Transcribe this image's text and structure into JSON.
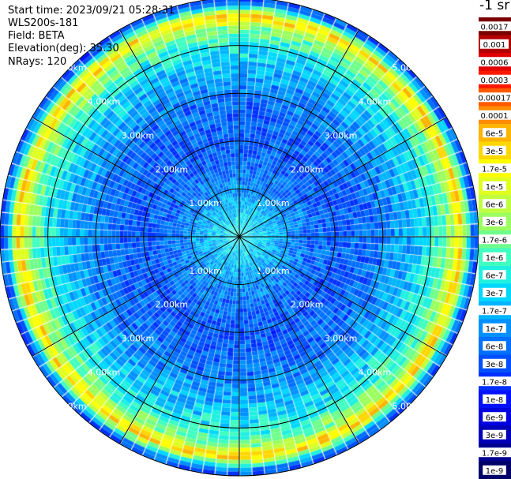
{
  "header": {
    "start_time": "Start time: 2023/09/21 05:28:31",
    "device": "WLS200s-181",
    "field": "Field: BETA",
    "elevation": "Elevation(deg): 35.30",
    "nrays": "NRays: 120"
  },
  "colorbar": {
    "unit_label": "-1 sr",
    "ticks": [
      "0.0017",
      "0.001",
      "0.0006",
      "0.0003",
      "0.00017",
      "0.0001",
      "6e-5",
      "3e-5",
      "1.7e-5",
      "1e-5",
      "6e-6",
      "3e-6",
      "1.7e-6",
      "1e-6",
      "6e-7",
      "3e-7",
      "1.7e-7",
      "1e-7",
      "6e-8",
      "3e-8",
      "1.7e-8",
      "1e-8",
      "6e-9",
      "3e-9",
      "1.7e-9",
      "1e-9"
    ],
    "colors": [
      "#7a0000",
      "#b40000",
      "#e00000",
      "#ff1a00",
      "#ff5a00",
      "#ff8c00",
      "#ffb400",
      "#ffd700",
      "#ffff00",
      "#e0ff20",
      "#c0ff40",
      "#9cff60",
      "#70ff8c",
      "#40ffc0",
      "#20f0e0",
      "#00d8ff",
      "#00b4ff",
      "#0090ff",
      "#0070ff",
      "#0050ff",
      "#0030ff",
      "#0010ff",
      "#0000e0",
      "#0000b8",
      "#000090",
      "#000068"
    ]
  },
  "chart_data": {
    "type": "heatmap",
    "projection": "polar PPI",
    "range_rings_km": [
      "1.00km",
      "2.00km",
      "3.00km",
      "4.00km",
      "5.00km"
    ],
    "max_range_km": 5.0,
    "nrays": 120,
    "radial_lines_deg": [
      0,
      30,
      60,
      90,
      120,
      150,
      180,
      210,
      240,
      270,
      300,
      330
    ],
    "range_profile_log10_beta": [
      [
        0.0,
        -6.3
      ],
      [
        0.5,
        -6.6
      ],
      [
        1.0,
        -7.0
      ],
      [
        1.5,
        -7.3
      ],
      [
        2.0,
        -7.5
      ],
      [
        2.5,
        -7.4
      ],
      [
        3.0,
        -7.2
      ],
      [
        3.5,
        -6.8
      ],
      [
        4.0,
        -6.3
      ],
      [
        4.4,
        -5.6
      ],
      [
        4.6,
        -4.4
      ],
      [
        4.75,
        -5.8
      ],
      [
        4.9,
        -7.3
      ],
      [
        5.0,
        -7.6
      ]
    ],
    "colorscale_range": [
      "1e-9",
      "0.0017"
    ]
  }
}
